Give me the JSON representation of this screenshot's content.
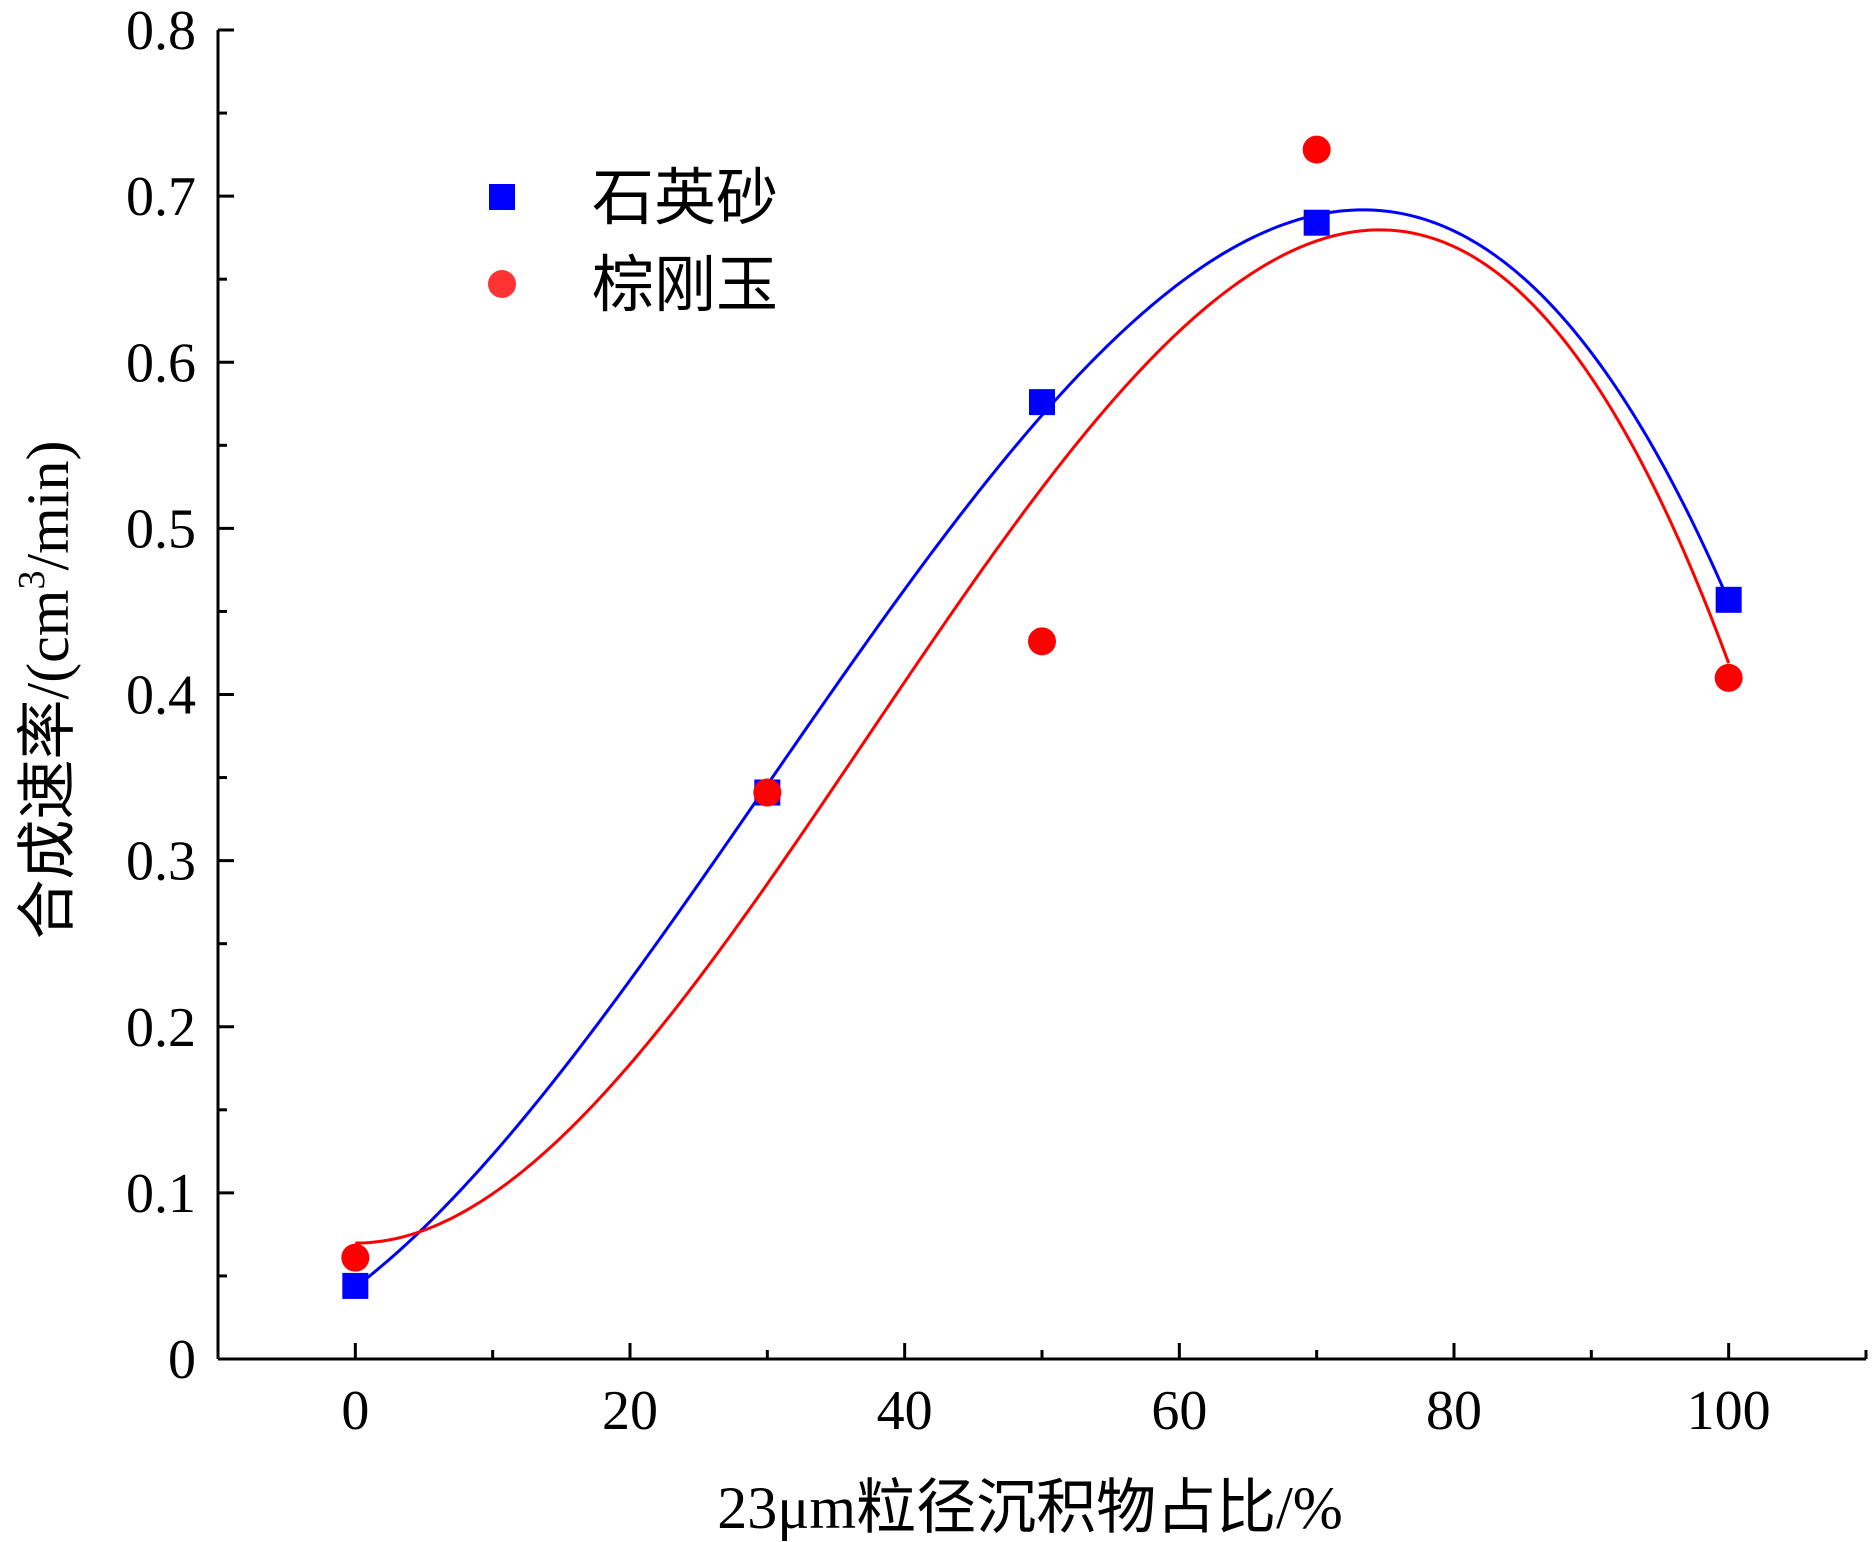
{
  "chart_data": {
    "type": "scatter",
    "xlabel": "23μm粒径沉积物占比/%",
    "ylabel_main": "合成速率/(cm",
    "ylabel_sup": "3",
    "ylabel_tail": "/min)",
    "xlim": [
      -10,
      110
    ],
    "ylim": [
      0,
      0.8
    ],
    "xticks": [
      0,
      20,
      40,
      60,
      80,
      100
    ],
    "xtick_labels": [
      "0",
      "20",
      "40",
      "60",
      "80",
      "100"
    ],
    "yticks": [
      0,
      0.1,
      0.2,
      0.3,
      0.4,
      0.5,
      0.6,
      0.7,
      0.8
    ],
    "ytick_labels": [
      "0",
      "0.1",
      "0.2",
      "0.3",
      "0.4",
      "0.5",
      "0.6",
      "0.7",
      "0.8"
    ],
    "x_minor_step": 10,
    "y_minor_step": 0.05,
    "grid": false,
    "legend_position": "top-left",
    "series": [
      {
        "name": "石英砂",
        "marker": "square",
        "color": "#0000ff",
        "x": [
          0,
          30,
          50,
          70,
          100
        ],
        "y": [
          0.044,
          0.341,
          0.576,
          0.684,
          0.457
        ],
        "fit": "cubic"
      },
      {
        "name": "棕刚玉",
        "marker": "circle",
        "color": "#ff0000",
        "x": [
          0,
          30,
          50,
          70,
          100
        ],
        "y": [
          0.061,
          0.341,
          0.432,
          0.728,
          0.41
        ],
        "fit": "cubic"
      }
    ]
  }
}
